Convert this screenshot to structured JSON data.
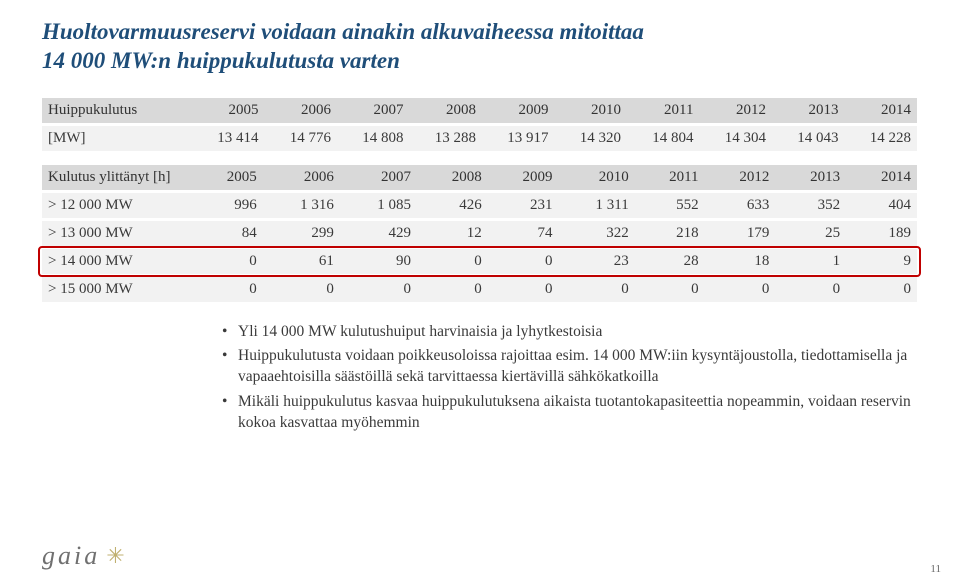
{
  "title_line1": "Huoltovarmuusreservi voidaan ainakin alkuvaiheessa mitoittaa",
  "title_line2": "14 000 MW:n huippukulutusta varten",
  "table1": {
    "header": [
      "Huippukulutus",
      "2005",
      "2006",
      "2007",
      "2008",
      "2009",
      "2010",
      "2011",
      "2012",
      "2013",
      "2014"
    ],
    "rows": [
      [
        "[MW]",
        "13 414",
        "14 776",
        "14 808",
        "13 288",
        "13 917",
        "14 320",
        "14 804",
        "14 304",
        "14 043",
        "14 228"
      ]
    ]
  },
  "table2": {
    "header": [
      "Kulutus ylittänyt [h]",
      "2005",
      "2006",
      "2007",
      "2008",
      "2009",
      "2010",
      "2011",
      "2012",
      "2013",
      "2014"
    ],
    "rows": [
      [
        "> 12 000 MW",
        "996",
        "1 316",
        "1 085",
        "426",
        "231",
        "1 311",
        "552",
        "633",
        "352",
        "404"
      ],
      [
        "> 13 000 MW",
        "84",
        "299",
        "429",
        "12",
        "74",
        "322",
        "218",
        "179",
        "25",
        "189"
      ],
      [
        "> 14 000 MW",
        "0",
        "61",
        "90",
        "0",
        "0",
        "23",
        "28",
        "18",
        "1",
        "9"
      ],
      [
        "> 15 000 MW",
        "0",
        "0",
        "0",
        "0",
        "0",
        "0",
        "0",
        "0",
        "0",
        "0"
      ]
    ],
    "highlight_row_index": 2
  },
  "bullets": [
    "Yli 14 000 MW kulutushuiput harvinaisia ja lyhytkestoisia",
    "Huippukulutusta voidaan poikkeusoloissa rajoittaa esim. 14 000 MW:iin kysyntäjoustolla, tiedottamisella ja vapaaehtoisilla säästöillä sekä tarvittaessa kiertävillä sähkökatkoilla",
    "Mikäli huippukulutus kasvaa huippukulutuksena aikaista tuotantokapasiteettia nopeammin, voidaan reservin kokoa kasvattaa myöhemmin"
  ],
  "logo_text": "gaia",
  "page_number": "11",
  "colors": {
    "title": "#1f4e79",
    "header_bg": "#d9d9d9",
    "row_bg": "#f2f2f2",
    "highlight": "#c00000",
    "text": "#3a3a3a"
  }
}
